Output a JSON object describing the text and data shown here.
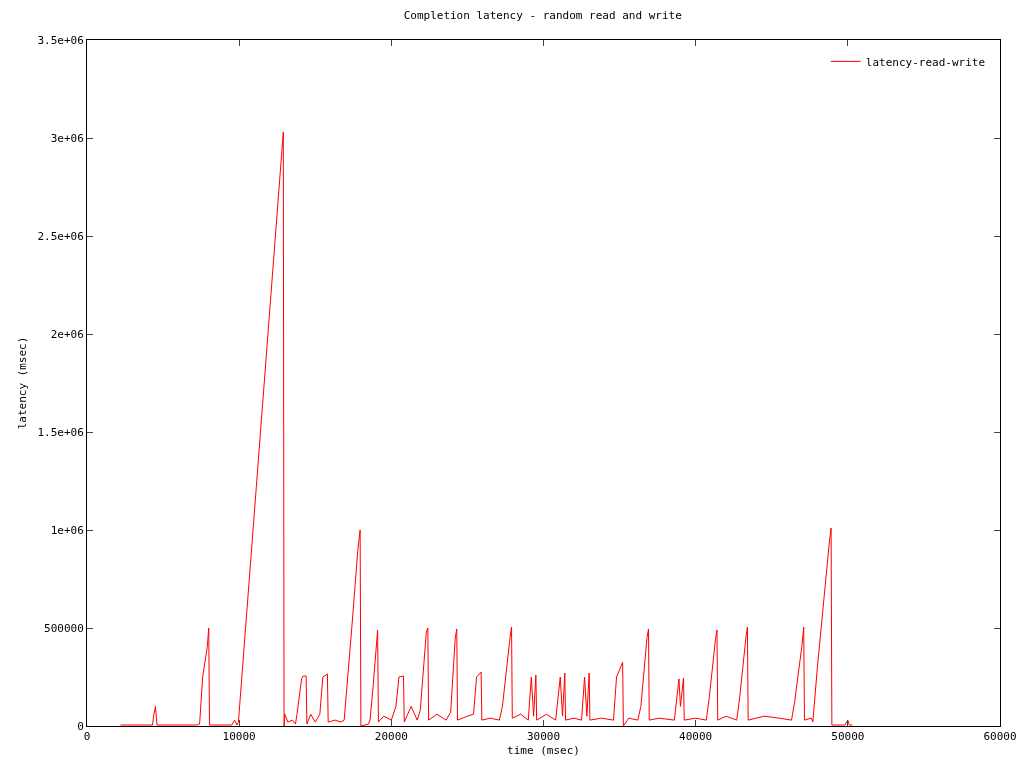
{
  "chart_data": {
    "type": "line",
    "title": "Completion latency - random read and write",
    "xlabel": "time (msec)",
    "ylabel": "latency (msec)",
    "xlim": [
      0,
      60000
    ],
    "xticks": [
      0,
      10000,
      20000,
      30000,
      40000,
      50000,
      60000
    ],
    "ylim": [
      0,
      3500000
    ],
    "yticks": [
      0,
      500000,
      {
        "value": 1000000,
        "label": "1e+06"
      },
      {
        "value": 1500000,
        "label": "1.5e+06"
      },
      {
        "value": 2000000,
        "label": "2e+06"
      },
      {
        "value": 2500000,
        "label": "2.5e+06"
      },
      {
        "value": 3000000,
        "label": "3e+06"
      },
      {
        "value": 3500000,
        "label": "3.5e+06"
      }
    ],
    "grid": false,
    "legend": "top right",
    "marker": "none",
    "line_style": "solid",
    "x": [
      2200,
      4300,
      4400,
      4500,
      4600,
      7200,
      7400,
      7600,
      7900,
      8000,
      8050,
      9500,
      9700,
      9850,
      9950,
      12900,
      12950,
      13000,
      13200,
      13500,
      13700,
      13800,
      14100,
      14200,
      14400,
      14450,
      14700,
      15000,
      15300,
      15500,
      15800,
      15850,
      16300,
      16700,
      16900,
      17400,
      17800,
      17950,
      18000,
      18500,
      18600,
      18800,
      19100,
      19150,
      19500,
      20000,
      20300,
      20500,
      20800,
      20850,
      21300,
      21700,
      21900,
      22300,
      22400,
      22450,
      23000,
      23600,
      23900,
      24200,
      24300,
      24350,
      25000,
      25400,
      25600,
      25900,
      25950,
      26500,
      27100,
      27300,
      27800,
      27900,
      27950,
      28500,
      29000,
      29200,
      29350,
      29500,
      29550,
      30200,
      30800,
      31100,
      31250,
      31400,
      31450,
      32000,
      32500,
      32700,
      32850,
      33000,
      33050,
      33800,
      34600,
      34800,
      35200,
      35250,
      35600,
      36200,
      36400,
      36800,
      36900,
      36950,
      37600,
      38600,
      38900,
      39000,
      39200,
      39250,
      40000,
      40700,
      40900,
      41300,
      41400,
      41450,
      42000,
      42700,
      42900,
      43300,
      43400,
      43450,
      44500,
      45500,
      46300,
      46500,
      47000,
      47100,
      47150,
      47600,
      47700,
      48000,
      48800,
      48900,
      48950,
      49800,
      50000,
      50100,
      50300
    ],
    "series": [
      {
        "name": "latency-read-write",
        "color": "#ff0000",
        "values": [
          5000,
          5000,
          60000,
          100000,
          5000,
          5000,
          10000,
          250000,
          400000,
          500000,
          5000,
          5000,
          30000,
          5000,
          20000,
          3030000,
          0,
          60000,
          20000,
          30000,
          10000,
          60000,
          240000,
          255000,
          255000,
          10000,
          60000,
          20000,
          60000,
          250000,
          265000,
          20000,
          30000,
          20000,
          30000,
          500000,
          900000,
          1000000,
          0,
          10000,
          30000,
          200000,
          490000,
          20000,
          50000,
          30000,
          100000,
          250000,
          255000,
          20000,
          100000,
          30000,
          80000,
          480000,
          500000,
          30000,
          60000,
          30000,
          70000,
          450000,
          495000,
          30000,
          50000,
          60000,
          250000,
          275000,
          30000,
          40000,
          30000,
          100000,
          450000,
          505000,
          40000,
          60000,
          30000,
          250000,
          50000,
          260000,
          30000,
          60000,
          30000,
          250000,
          50000,
          270000,
          30000,
          40000,
          30000,
          250000,
          50000,
          270000,
          30000,
          40000,
          30000,
          250000,
          325000,
          0,
          40000,
          30000,
          100000,
          450000,
          495000,
          30000,
          40000,
          30000,
          240000,
          100000,
          245000,
          30000,
          40000,
          30000,
          150000,
          440000,
          490000,
          30000,
          50000,
          30000,
          150000,
          450000,
          505000,
          30000,
          50000,
          40000,
          30000,
          120000,
          420000,
          505000,
          30000,
          40000,
          20000,
          300000,
          950000,
          1010000,
          5000,
          5000,
          30000,
          5000,
          5000
        ]
      }
    ]
  }
}
